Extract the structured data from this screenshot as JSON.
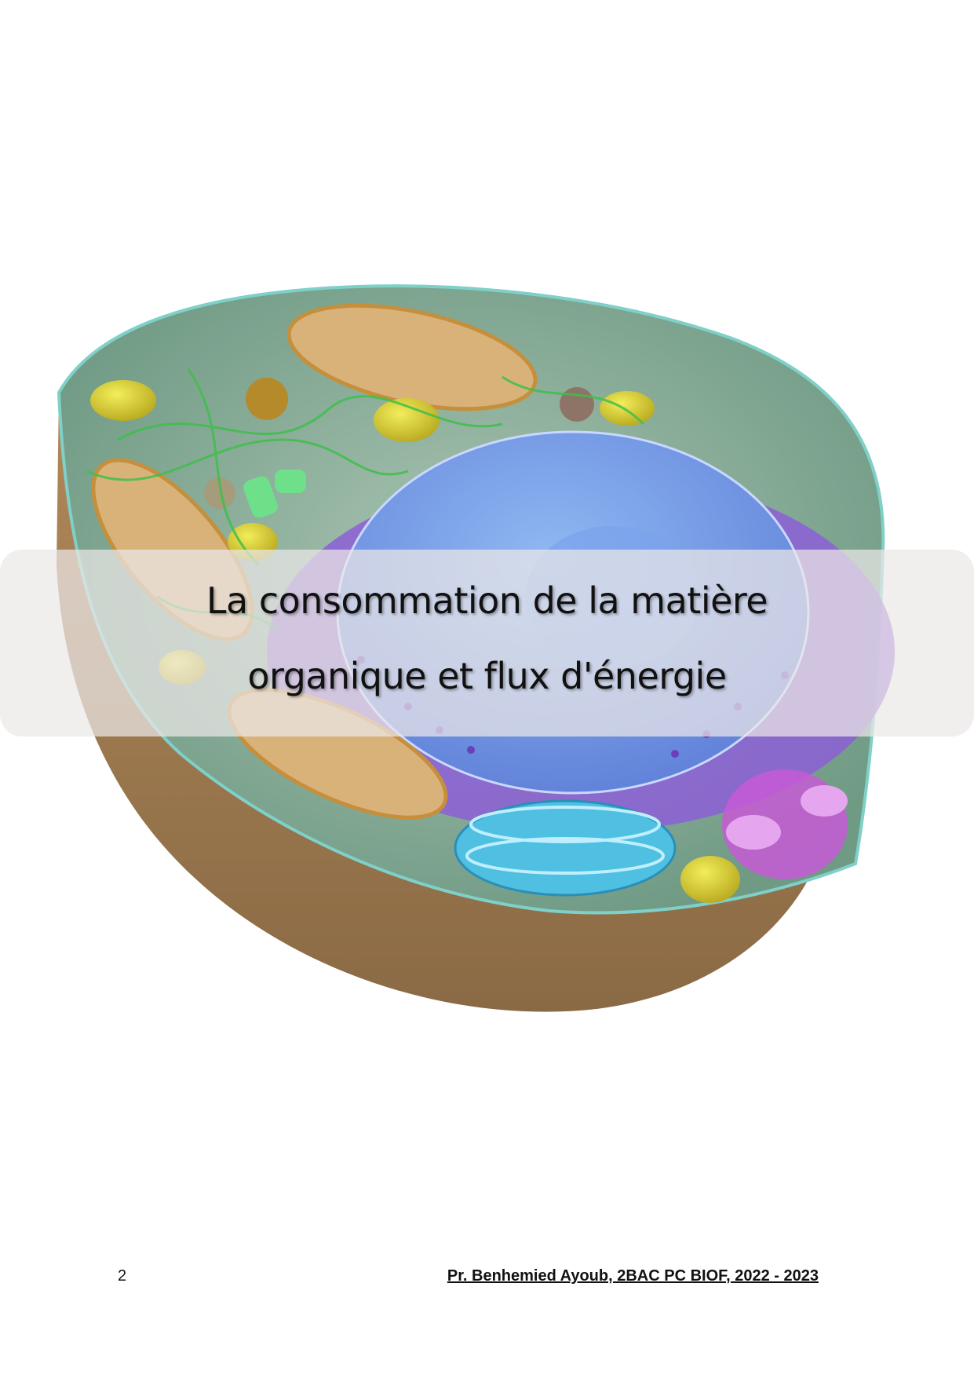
{
  "title": {
    "line1": "La consommation de la matière",
    "line2": "organique et flux d'énergie"
  },
  "footer": {
    "page_number": "2",
    "credit": "Pr. Benhemied Ayoub, 2BAC PC BIOF, 2022 - 2023"
  }
}
